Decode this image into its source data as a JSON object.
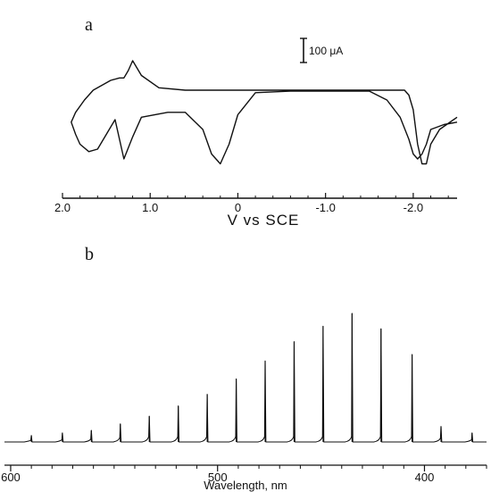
{
  "chart_data": [
    {
      "panel": "a",
      "type": "line",
      "xlabel": "V vs SCE",
      "ylabel": "",
      "x_ticks": [
        "2.0",
        "1.0",
        "0",
        "-1.0",
        "-2.0"
      ],
      "x_tick_values": [
        2.0,
        1.0,
        0,
        -1.0,
        -2.0
      ],
      "xlim": [
        2.0,
        -2.5
      ],
      "x_reversed": true,
      "scale_bar": {
        "label": "100 μA",
        "value_uA": 100
      },
      "grid": false,
      "series": [
        {
          "x": [
            -2.5,
            -2.3,
            -2.2,
            -2.15,
            -2.1,
            -2.05,
            -2.0,
            -1.95,
            -1.9,
            -1.7,
            -1.5,
            -1.0,
            -0.5,
            0,
            0.2,
            0.6,
            0.9,
            1.1,
            1.2,
            1.25,
            1.3,
            1.35,
            1.45,
            1.55,
            1.65,
            1.75,
            1.85,
            1.9,
            1.85,
            1.8,
            1.7,
            1.6,
            1.5,
            1.4,
            1.3,
            1.2,
            1.1,
            0.8,
            0.6,
            0.4,
            0.3,
            0.2,
            0.1,
            0,
            -0.2,
            -0.6,
            -1.0,
            -1.5,
            -1.7,
            -1.85,
            -1.95,
            -2.0,
            -2.05,
            -2.1,
            -2.15,
            -2.2,
            -2.35,
            -2.5
          ],
          "y": [
            -55,
            -80,
            -110,
            -150,
            -150,
            -110,
            -40,
            -10,
            0,
            0,
            0,
            0,
            0,
            0,
            0,
            0,
            5,
            30,
            60,
            40,
            25,
            25,
            20,
            10,
            0,
            -20,
            -45,
            -65,
            -90,
            -110,
            -125,
            -120,
            -90,
            -60,
            -140,
            -95,
            -55,
            -45,
            -45,
            -80,
            -130,
            -150,
            -110,
            -50,
            -5,
            -2,
            -2,
            -2,
            -20,
            -55,
            -100,
            -130,
            -140,
            -130,
            -110,
            -80,
            -70,
            -65
          ]
        }
      ]
    },
    {
      "panel": "b",
      "type": "line",
      "xlabel": "Wavelength, nm",
      "ylabel": "",
      "x_ticks": [
        "600",
        "500",
        "400"
      ],
      "x_tick_values": [
        600,
        500,
        400
      ],
      "xlim": [
        603,
        370
      ],
      "x_reversed": true,
      "grid": false,
      "spikes": {
        "wavelength_nm": [
          590,
          575,
          561,
          547,
          533,
          519,
          505,
          491,
          477,
          463,
          449,
          435,
          421,
          406,
          392,
          377
        ],
        "height": [
          5,
          7,
          9,
          14,
          20,
          28,
          37,
          49,
          63,
          78,
          90,
          100,
          88,
          68,
          12,
          7
        ]
      }
    }
  ]
}
